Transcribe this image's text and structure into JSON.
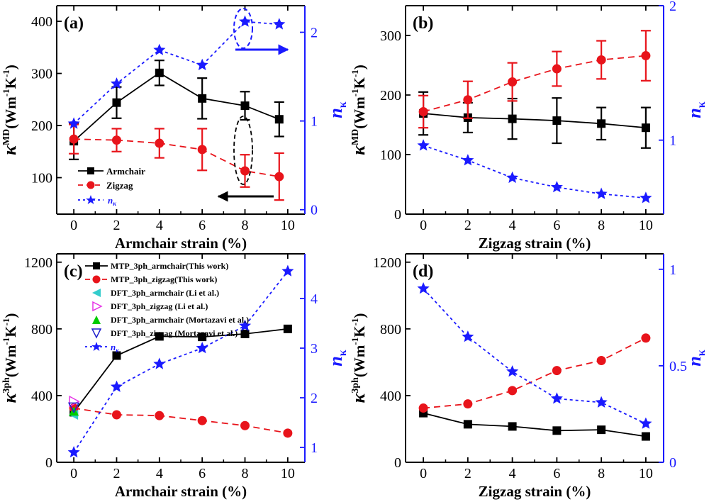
{
  "colors": {
    "black": "#000000",
    "red": "#e8141b",
    "blue": "#1a1aff",
    "cyan": "#33cccc",
    "magenta": "#e633e6",
    "green": "#00cc00",
    "navy": "#1f1fcc"
  },
  "chart_data": [
    {
      "panel": "(a)",
      "type": "line",
      "xlabel": "Armchair strain (%)",
      "ylabel_left": "κMD(Wm-1K-1)",
      "ylabel_right": "nκ",
      "xlim": [
        -0.8,
        10.8
      ],
      "ylim": [
        30,
        430
      ],
      "ylim_right": [
        -0.05,
        2.3
      ],
      "xticks": [
        0,
        2,
        4,
        6,
        8,
        10
      ],
      "yticks": [
        100,
        200,
        300,
        400
      ],
      "yticks_right": [
        0,
        1,
        2
      ],
      "legend_position": "lower-left",
      "series": [
        {
          "name": "Armchair",
          "color": "#000000",
          "marker": "square",
          "line": "solid",
          "axis": "left",
          "x": [
            0,
            2,
            4,
            6,
            8,
            9.6
          ],
          "y": [
            170,
            244,
            301,
            252,
            238,
            212
          ],
          "err": [
            35,
            30,
            24,
            39,
            27,
            33
          ]
        },
        {
          "name": "Zigzag",
          "color": "#e8141b",
          "marker": "circle",
          "line": "dash",
          "axis": "left",
          "x": [
            0,
            2,
            4,
            6,
            8,
            9.6
          ],
          "y": [
            174,
            172,
            166,
            154,
            113,
            102
          ],
          "err": [
            28,
            22,
            28,
            40,
            31,
            45
          ]
        },
        {
          "name": "nκ",
          "color": "#1a1aff",
          "marker": "star",
          "line": "dot",
          "axis": "right",
          "x": [
            0,
            2,
            4,
            6,
            8,
            9.6
          ],
          "y": [
            0.97,
            1.42,
            1.8,
            1.63,
            2.12,
            2.09
          ]
        }
      ]
    },
    {
      "panel": "(b)",
      "type": "line",
      "xlabel": "Zigzag strain (%)",
      "ylabel_left": "κMD(Wm-1K-1)",
      "ylabel_right": "nκ",
      "xlim": [
        -0.8,
        10.8
      ],
      "ylim": [
        0,
        350
      ],
      "ylim_right": [
        0.45,
        2.0
      ],
      "xticks": [
        0,
        2,
        4,
        6,
        8,
        10
      ],
      "yticks": [
        0,
        100,
        200,
        300
      ],
      "yticks_right": [
        1,
        2
      ],
      "series": [
        {
          "name": "Armchair",
          "color": "#000000",
          "marker": "square",
          "line": "solid",
          "axis": "left",
          "x": [
            0,
            2,
            4,
            6,
            8,
            10
          ],
          "y": [
            169,
            162,
            160,
            157,
            152,
            145
          ],
          "err": [
            36,
            25,
            34,
            38,
            27,
            34
          ]
        },
        {
          "name": "Zigzag",
          "color": "#e8141b",
          "marker": "circle",
          "line": "dash",
          "axis": "left",
          "x": [
            0,
            2,
            4,
            6,
            8,
            10
          ],
          "y": [
            172,
            192,
            222,
            244,
            259,
            266
          ],
          "err": [
            27,
            31,
            32,
            29,
            32,
            42
          ]
        },
        {
          "name": "nκ",
          "color": "#1a1aff",
          "marker": "star",
          "line": "dot",
          "axis": "right",
          "x": [
            0,
            2,
            4,
            6,
            8,
            10
          ],
          "y": [
            0.96,
            0.85,
            0.72,
            0.65,
            0.6,
            0.57
          ]
        }
      ]
    },
    {
      "panel": "(c)",
      "type": "line",
      "xlabel": "Armchair strain (%)",
      "ylabel_left": "κ3ph(Wm-1K-1)",
      "ylabel_right": "nκ",
      "xlim": [
        -0.8,
        10.8
      ],
      "ylim": [
        0,
        1250
      ],
      "ylim_right": [
        0.7,
        4.9
      ],
      "xticks": [
        0,
        2,
        4,
        6,
        8,
        10
      ],
      "yticks": [
        0,
        400,
        800,
        1200
      ],
      "yticks_right": [
        1,
        2,
        3,
        4
      ],
      "legend_position": "top-left",
      "series": [
        {
          "name": "MTP_3ph_armchair(This work)",
          "color": "#000000",
          "marker": "square",
          "line": "solid",
          "axis": "left",
          "x": [
            0,
            2,
            4,
            6,
            8,
            10
          ],
          "y": [
            300,
            640,
            755,
            752,
            770,
            800
          ]
        },
        {
          "name": "MTP_3ph_zigzag(This work)",
          "color": "#e8141b",
          "marker": "circle",
          "line": "dash",
          "axis": "left",
          "x": [
            0,
            2,
            4,
            6,
            8,
            10
          ],
          "y": [
            325,
            285,
            280,
            250,
            220,
            175
          ]
        },
        {
          "name": "DFT_3ph_armchair (Li et al.)",
          "color": "#33cccc",
          "marker": "triangle-left",
          "line": "none",
          "axis": "left",
          "x": [
            0
          ],
          "y": [
            285
          ]
        },
        {
          "name": "DFT_3ph_zigzag (Li et al.)",
          "color": "#e633e6",
          "marker": "triangle-right-open",
          "line": "none",
          "axis": "left",
          "x": [
            0
          ],
          "y": [
            365
          ]
        },
        {
          "name": "DFT_3ph_armchair (Mortazavi et al.)",
          "color": "#00cc00",
          "marker": "triangle-up",
          "line": "none",
          "axis": "left",
          "x": [
            0
          ],
          "y": [
            305
          ]
        },
        {
          "name": "DFT_3ph_zigzag (Mortazavi et al.)",
          "color": "#1f1fcc",
          "marker": "triangle-down-open",
          "line": "none",
          "axis": "left",
          "x": [
            0
          ],
          "y": [
            330
          ]
        },
        {
          "name": "nκ",
          "color": "#1a1aff",
          "marker": "star",
          "line": "dot",
          "axis": "right",
          "x": [
            0,
            2,
            4,
            6,
            8,
            10
          ],
          "y": [
            0.9,
            2.22,
            2.68,
            3.0,
            3.45,
            4.55
          ]
        }
      ]
    },
    {
      "panel": "(d)",
      "type": "line",
      "xlabel": "Zigzag strain (%)",
      "ylabel_left": "κ3ph(Wm-1K-1)",
      "ylabel_right": "nκ",
      "xlim": [
        -0.8,
        10.8
      ],
      "ylim": [
        0,
        1250
      ],
      "ylim_right": [
        0,
        1.08
      ],
      "xticks": [
        0,
        2,
        4,
        6,
        8,
        10
      ],
      "yticks": [
        0,
        400,
        800,
        1200
      ],
      "yticks_right": [
        0,
        0.5,
        1
      ],
      "series": [
        {
          "name": "Armchair",
          "color": "#000000",
          "marker": "square",
          "line": "solid",
          "axis": "left",
          "x": [
            0,
            2,
            4,
            6,
            8,
            10
          ],
          "y": [
            295,
            228,
            215,
            190,
            195,
            155
          ]
        },
        {
          "name": "Zigzag",
          "color": "#e8141b",
          "marker": "circle",
          "line": "dash",
          "axis": "left",
          "x": [
            0,
            2,
            4,
            6,
            8,
            10
          ],
          "y": [
            325,
            350,
            430,
            550,
            610,
            745
          ]
        },
        {
          "name": "nκ",
          "color": "#1a1aff",
          "marker": "star",
          "line": "dot",
          "axis": "right",
          "x": [
            0,
            2,
            4,
            6,
            8,
            10
          ],
          "y": [
            0.9,
            0.65,
            0.47,
            0.33,
            0.31,
            0.2
          ]
        }
      ]
    }
  ]
}
